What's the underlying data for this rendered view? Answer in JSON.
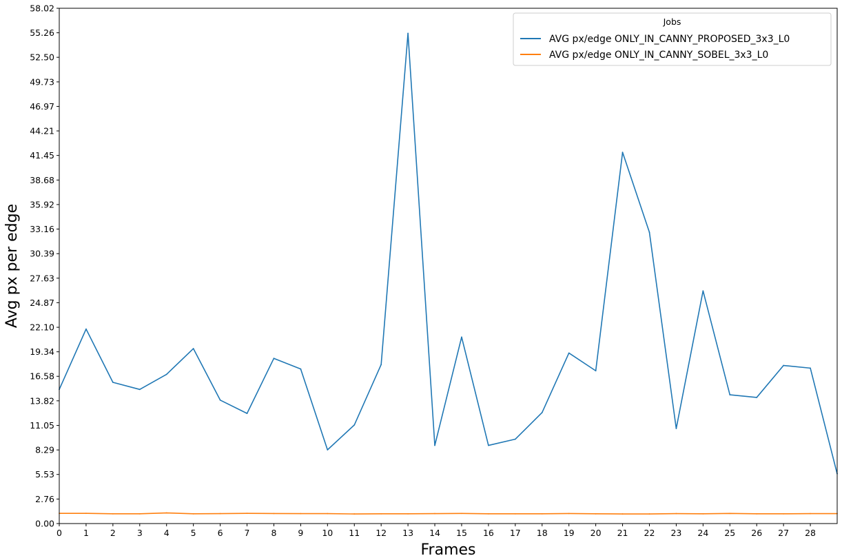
{
  "chart_data": {
    "type": "line",
    "xlabel": "Frames",
    "ylabel": "Avg px per edge",
    "xlim": [
      0,
      29
    ],
    "ylim": [
      0,
      58.02
    ],
    "x_ticks": [
      0,
      1,
      2,
      3,
      4,
      5,
      6,
      7,
      8,
      9,
      10,
      11,
      12,
      13,
      14,
      15,
      16,
      17,
      18,
      19,
      20,
      21,
      22,
      23,
      24,
      25,
      26,
      27,
      28
    ],
    "y_ticks": [
      "0.00",
      "2.76",
      "5.53",
      "8.29",
      "11.05",
      "13.82",
      "16.58",
      "19.34",
      "22.10",
      "24.87",
      "27.63",
      "30.39",
      "33.16",
      "35.92",
      "38.68",
      "41.45",
      "44.21",
      "46.97",
      "49.73",
      "52.50",
      "55.26",
      "58.02"
    ],
    "x": [
      0,
      1,
      2,
      3,
      4,
      5,
      6,
      7,
      8,
      9,
      10,
      11,
      12,
      13,
      14,
      15,
      16,
      17,
      18,
      19,
      20,
      21,
      22,
      23,
      24,
      25,
      26,
      27,
      28,
      29
    ],
    "grid": false,
    "legend": {
      "title": "Jobs",
      "position": "top-right"
    },
    "series": [
      {
        "name": "AVG px/edge ONLY_IN_CANNY_PROPOSED_3x3_L0",
        "color": "#1f77b4",
        "values": [
          15.1,
          21.9,
          15.9,
          15.1,
          16.8,
          19.7,
          13.9,
          12.4,
          18.6,
          17.4,
          8.3,
          11.1,
          17.9,
          55.2,
          8.8,
          21.0,
          8.8,
          9.5,
          12.5,
          19.2,
          17.2,
          41.8,
          32.8,
          10.7,
          26.2,
          14.5,
          14.2,
          17.8,
          17.5,
          5.6
        ]
      },
      {
        "name": "AVG px/edge ONLY_IN_CANNY_SOBEL_3x3_L0",
        "color": "#ff7f0e",
        "values": [
          1.15,
          1.15,
          1.1,
          1.1,
          1.2,
          1.1,
          1.12,
          1.15,
          1.13,
          1.12,
          1.12,
          1.08,
          1.1,
          1.1,
          1.12,
          1.14,
          1.1,
          1.1,
          1.1,
          1.13,
          1.1,
          1.08,
          1.08,
          1.12,
          1.1,
          1.14,
          1.1,
          1.1,
          1.12,
          1.12
        ]
      }
    ]
  }
}
